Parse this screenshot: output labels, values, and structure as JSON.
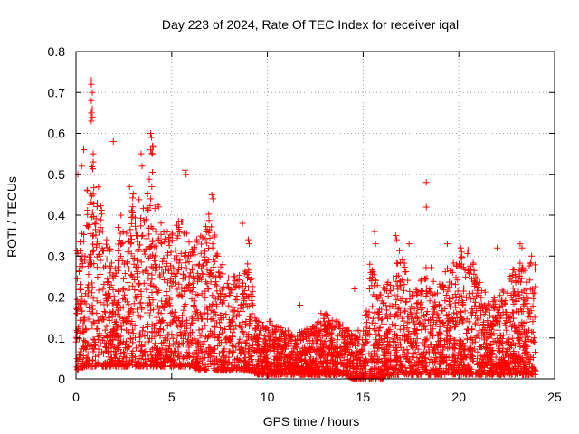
{
  "chart_data": {
    "type": "scatter",
    "title": "Day 223 of 2024, Rate Of TEC Index for receiver iqal",
    "xlabel": "GPS time / hours",
    "ylabel": "ROTI / TECUs",
    "xlim": [
      0,
      25
    ],
    "ylim": [
      0,
      0.8
    ],
    "xticks": [
      0,
      5,
      10,
      15,
      20,
      25
    ],
    "xtick_labels": [
      "0",
      "5",
      "10",
      "15",
      "20",
      "25"
    ],
    "yticks": [
      0,
      0.1,
      0.2,
      0.3,
      0.4,
      0.5,
      0.6,
      0.7,
      0.8
    ],
    "ytick_labels": [
      "0",
      "0.1",
      "0.2",
      "0.3",
      "0.4",
      "0.5",
      "0.6",
      "0.7",
      "0.8"
    ],
    "grid": true,
    "marker": "+",
    "color": "#ff0000",
    "series": [
      {
        "name": "ROTI",
        "envelope": {
          "x": [
            0,
            0.5,
            1,
            1.5,
            2,
            2.5,
            3,
            3.5,
            4,
            4.5,
            5,
            5.5,
            6,
            6.5,
            7,
            7.5,
            8,
            8.5,
            9,
            9.5,
            10,
            10.5,
            11,
            11.5,
            12,
            12.5,
            13,
            13.5,
            14,
            14.5,
            15,
            15.5,
            16,
            16.5,
            17,
            17.5,
            18,
            18.5,
            19,
            19.5,
            20,
            20.5,
            21,
            21.5,
            22,
            22.5,
            23,
            23.5,
            24
          ],
          "y_max": [
            0.3,
            0.46,
            0.55,
            0.35,
            0.32,
            0.38,
            0.47,
            0.42,
            0.58,
            0.36,
            0.37,
            0.4,
            0.33,
            0.35,
            0.42,
            0.3,
            0.28,
            0.26,
            0.3,
            0.14,
            0.15,
            0.13,
            0.12,
            0.11,
            0.12,
            0.13,
            0.16,
            0.15,
            0.13,
            0.12,
            0.12,
            0.3,
            0.22,
            0.25,
            0.34,
            0.2,
            0.24,
            0.3,
            0.24,
            0.28,
            0.3,
            0.32,
            0.25,
            0.2,
            0.2,
            0.25,
            0.28,
            0.3,
            0.3
          ],
          "y_min": [
            0.02,
            0.03,
            0.03,
            0.03,
            0.03,
            0.03,
            0.03,
            0.03,
            0.03,
            0.03,
            0.03,
            0.03,
            0.03,
            0.02,
            0.02,
            0.02,
            0.02,
            0.02,
            0.02,
            0.01,
            0.01,
            0.01,
            0.01,
            0.01,
            0.01,
            0.01,
            0.01,
            0.01,
            0.01,
            0.0,
            0.0,
            0.0,
            0.0,
            0.01,
            0.01,
            0.01,
            0.01,
            0.01,
            0.01,
            0.01,
            0.01,
            0.01,
            0.01,
            0.01,
            0.01,
            0.01,
            0.01,
            0.01,
            0.01
          ],
          "count": 4200
        },
        "outliers": [
          {
            "x": 0.8,
            "y": 0.73
          },
          {
            "x": 0.8,
            "y": 0.72
          },
          {
            "x": 0.85,
            "y": 0.7
          },
          {
            "x": 0.8,
            "y": 0.68
          },
          {
            "x": 0.85,
            "y": 0.66
          },
          {
            "x": 0.8,
            "y": 0.65
          },
          {
            "x": 0.85,
            "y": 0.64
          },
          {
            "x": 0.8,
            "y": 0.63
          },
          {
            "x": 1.95,
            "y": 0.58
          },
          {
            "x": 0.4,
            "y": 0.56
          },
          {
            "x": 3.9,
            "y": 0.6
          },
          {
            "x": 3.95,
            "y": 0.59
          },
          {
            "x": 4.0,
            "y": 0.57
          },
          {
            "x": 3.9,
            "y": 0.56
          },
          {
            "x": 4.0,
            "y": 0.55
          },
          {
            "x": 3.4,
            "y": 0.55
          },
          {
            "x": 0.9,
            "y": 0.55
          },
          {
            "x": 0.9,
            "y": 0.53
          },
          {
            "x": 0.3,
            "y": 0.52
          },
          {
            "x": 5.7,
            "y": 0.51
          },
          {
            "x": 5.75,
            "y": 0.5
          },
          {
            "x": 3.45,
            "y": 0.52
          },
          {
            "x": 18.3,
            "y": 0.48
          },
          {
            "x": 18.3,
            "y": 0.42
          },
          {
            "x": 0.6,
            "y": 0.46
          },
          {
            "x": 0.1,
            "y": 0.5
          },
          {
            "x": 2.8,
            "y": 0.47
          },
          {
            "x": 7.1,
            "y": 0.45
          },
          {
            "x": 7.15,
            "y": 0.44
          },
          {
            "x": 1.6,
            "y": 0.34
          },
          {
            "x": 2.2,
            "y": 0.37
          },
          {
            "x": 2.35,
            "y": 0.4
          },
          {
            "x": 8.7,
            "y": 0.38
          },
          {
            "x": 9.0,
            "y": 0.34
          },
          {
            "x": 9.05,
            "y": 0.33
          },
          {
            "x": 16.7,
            "y": 0.35
          },
          {
            "x": 16.75,
            "y": 0.34
          },
          {
            "x": 15.6,
            "y": 0.36
          },
          {
            "x": 15.65,
            "y": 0.33
          },
          {
            "x": 17.4,
            "y": 0.33
          },
          {
            "x": 19.4,
            "y": 0.33
          },
          {
            "x": 20.1,
            "y": 0.32
          },
          {
            "x": 20.15,
            "y": 0.31
          },
          {
            "x": 22.0,
            "y": 0.32
          },
          {
            "x": 23.2,
            "y": 0.33
          },
          {
            "x": 23.3,
            "y": 0.32
          },
          {
            "x": 23.8,
            "y": 0.3
          },
          {
            "x": 14.55,
            "y": 0.22
          },
          {
            "x": 15.35,
            "y": 0.28
          },
          {
            "x": 15.4,
            "y": 0.26
          },
          {
            "x": 15.45,
            "y": 0.24
          },
          {
            "x": 11.7,
            "y": 0.18
          },
          {
            "x": 12.8,
            "y": 0.16
          },
          {
            "x": 10.1,
            "y": 0.14
          }
        ]
      }
    ]
  }
}
